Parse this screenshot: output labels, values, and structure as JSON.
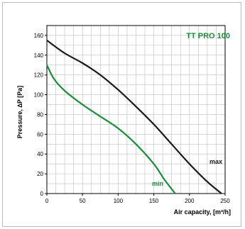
{
  "chart_data": {
    "type": "line",
    "title": "TT PRO 100",
    "xlabel": "Air capacity, [m³/h]",
    "ylabel": "Pressure, ∆P [Pa]",
    "xlim": [
      0,
      250
    ],
    "ylim": [
      0,
      170
    ],
    "x_ticks": [
      0,
      50,
      100,
      150,
      200,
      250
    ],
    "y_ticks": [
      0,
      20,
      40,
      60,
      80,
      100,
      120,
      140,
      160
    ],
    "x_grid_step": 12.5,
    "y_grid_step": 10,
    "grid": true,
    "legend": "none",
    "series": [
      {
        "name": "max",
        "color": "#1a1a1a",
        "x": [
          0,
          25,
          50,
          75,
          100,
          125,
          150,
          175,
          200,
          225,
          245
        ],
        "y": [
          155,
          142,
          132,
          120,
          105,
          88,
          70,
          50,
          30,
          12,
          0
        ]
      },
      {
        "name": "min",
        "color": "#1e8c3c",
        "x": [
          0,
          10,
          25,
          50,
          75,
          100,
          125,
          150,
          165,
          180
        ],
        "y": [
          130,
          116,
          104,
          90,
          78,
          66,
          50,
          30,
          14,
          0
        ]
      }
    ],
    "series_labels": [
      "max",
      "min"
    ],
    "colors": {
      "axis": "#000000",
      "grid": "#bdbdbd",
      "title": "#1e8c3c"
    }
  }
}
